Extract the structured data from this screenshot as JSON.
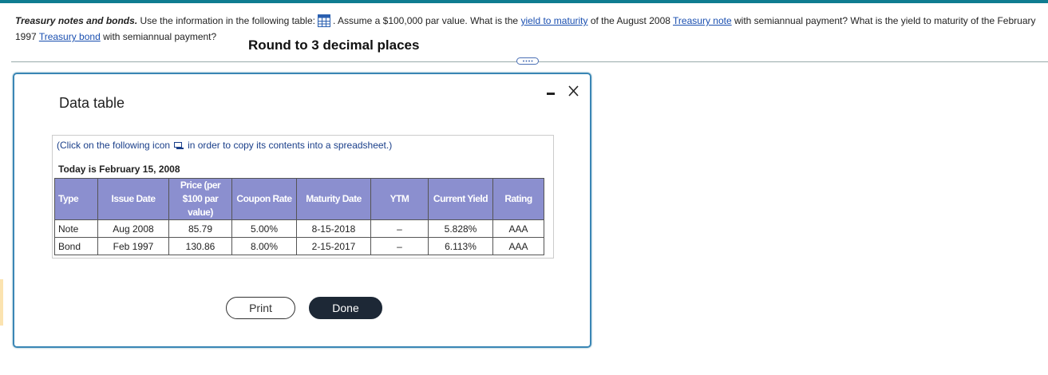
{
  "question": {
    "lead": "Treasury notes and bonds.",
    "part1": "Use the information in the following table:",
    "part2": ". Assume a $100,000 par value. What is the",
    "link1": "yield to maturity",
    "part3": "of the August 2008",
    "link2": "Treasury note",
    "part4": "with semiannual payment? What is the yield to maturity of the February 1997",
    "link3": "Treasury bond",
    "part5": "with semiannual payment?"
  },
  "instruction": "Round to 3 decimal places",
  "dialog": {
    "title": "Data table",
    "copy_note_before": "(Click on the following icon",
    "copy_note_after": "in order to copy its contents into a spreadsheet.)",
    "date_line": "Today is February 15, 2008",
    "table": {
      "headers": [
        "Type",
        "Issue Date",
        "Price (per $100 par value)",
        "Coupon Rate",
        "Maturity Date",
        "YTM",
        "Current Yield",
        "Rating"
      ],
      "rows": [
        [
          "Note",
          "Aug 2008",
          "85.79",
          "5.00%",
          "8-15-2018",
          "–",
          "5.828%",
          "AAA"
        ],
        [
          "Bond",
          "Feb 1997",
          "130.86",
          "8.00%",
          "2-15-2017",
          "–",
          "6.113%",
          "AAA"
        ]
      ]
    },
    "buttons": {
      "print": "Print",
      "done": "Done"
    }
  }
}
